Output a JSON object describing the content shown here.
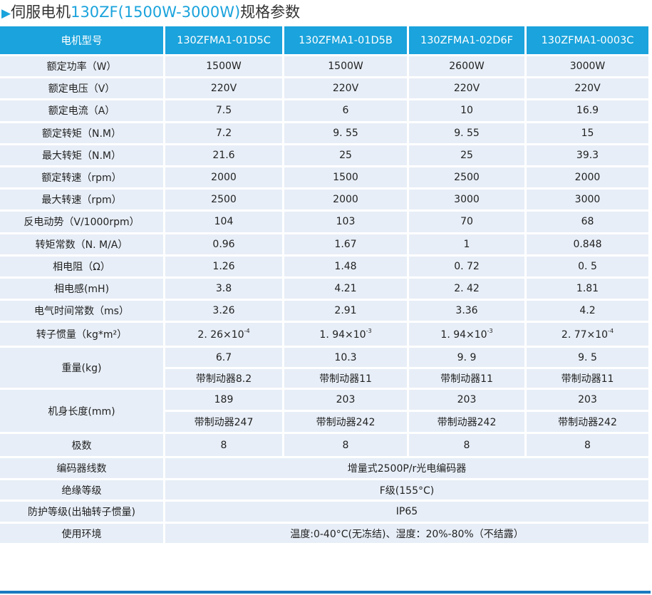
{
  "title": {
    "prefix": "伺服电机",
    "model": "130ZF(1500W-3000W)",
    "suffix": "规格参数"
  },
  "colors": {
    "header": "#1aa3dc",
    "cell": "#e7eef7",
    "accent": "#1aa3dc"
  },
  "header": [
    "电机型号",
    "130ZFMA1-01D5C",
    "130ZFMA1-01D5B",
    "130ZFMA1-02D6F",
    "130ZFMA1-0003C"
  ],
  "rows": [
    {
      "label": "额定功率（W）",
      "values": [
        "1500W",
        "1500W",
        "2600W",
        "3000W"
      ]
    },
    {
      "label": "额定电压（V）",
      "values": [
        "220V",
        "220V",
        "220V",
        "220V"
      ]
    },
    {
      "label": "额定电流（A）",
      "values": [
        "7.5",
        "6",
        "10",
        "16.9"
      ]
    },
    {
      "label": "额定转矩（N.M）",
      "values": [
        "7.2",
        "9. 55",
        "9. 55",
        "15"
      ]
    },
    {
      "label": "最大转矩（N.M）",
      "values": [
        "21.6",
        "25",
        "25",
        "39.3"
      ]
    },
    {
      "label": "额定转速（rpm）",
      "values": [
        "2000",
        "1500",
        "2500",
        "2000"
      ]
    },
    {
      "label": "最大转速（rpm）",
      "values": [
        "2500",
        "2000",
        "3000",
        "3000"
      ]
    },
    {
      "label": "反电动势（V/1000rpm）",
      "values": [
        "104",
        "103",
        "70",
        "68"
      ]
    },
    {
      "label": "转矩常数（N. M/A）",
      "values": [
        "0.96",
        "1.67",
        "1",
        "0.848"
      ]
    },
    {
      "label": "相电阻（Ω）",
      "values": [
        "1.26",
        "1.48",
        "0. 72",
        "0. 5"
      ]
    },
    {
      "label": "相电感(mH)",
      "values": [
        "3.8",
        "4.21",
        "2. 42",
        "1.81"
      ]
    },
    {
      "label": "电气时间常数（ms）",
      "values": [
        "3.26",
        "2.91",
        "3.36",
        "4.2"
      ]
    }
  ],
  "inertia": {
    "label": "转子惯量（kg*m²）",
    "values": [
      {
        "base": "2. 26×10",
        "exp": "-4"
      },
      {
        "base": "1. 94×10",
        "exp": "-3"
      },
      {
        "base": "1. 94×10",
        "exp": "-3"
      },
      {
        "base": "2. 77×10",
        "exp": "-4"
      }
    ]
  },
  "double_rows": [
    {
      "label": "重量(kg)",
      "values": [
        "6.7",
        "10.3",
        "9. 9",
        "9. 5"
      ],
      "brake": [
        "带制动器8.2",
        "带制动器11",
        "带制动器11",
        "带制动器11"
      ]
    },
    {
      "label": "机身长度(mm)",
      "values": [
        "189",
        "203",
        "203",
        "203"
      ],
      "brake": [
        "带制动器247",
        "带制动器242",
        "带制动器242",
        "带制动器242"
      ]
    }
  ],
  "poles": {
    "label": "极数",
    "values": [
      "8",
      "8",
      "8",
      "8"
    ]
  },
  "shared_rows": [
    {
      "label": "编码器线数",
      "value": "增量式2500P/r光电编码器"
    },
    {
      "label": "绝缘等级",
      "value": "F级(155°C)"
    },
    {
      "label": "防护等级(出轴转子惯量)",
      "value": "IP65"
    },
    {
      "label": "使用环境",
      "value": "温度:0-40°C(无冻结)、湿度：20%-80%（不结露）"
    }
  ]
}
